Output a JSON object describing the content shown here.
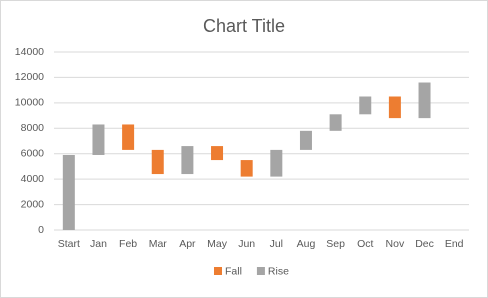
{
  "chart_data": {
    "type": "waterfall",
    "title": "Chart Title",
    "categories": [
      "Start",
      "Jan",
      "Feb",
      "Mar",
      "Apr",
      "May",
      "Jun",
      "Jul",
      "Aug",
      "Sep",
      "Oct",
      "Nov",
      "Dec",
      "End"
    ],
    "series": [
      {
        "name": "Fall",
        "color": "#ed7d31",
        "values": [
          null,
          null,
          [
            8300,
            6300
          ],
          [
            6300,
            4400
          ],
          null,
          [
            6600,
            5500
          ],
          [
            5500,
            4200
          ],
          null,
          null,
          null,
          null,
          [
            10500,
            8800
          ],
          null,
          null
        ]
      },
      {
        "name": "Rise",
        "color": "#a5a5a5",
        "values": [
          [
            0,
            5900
          ],
          [
            5900,
            8300
          ],
          null,
          null,
          [
            4400,
            6600
          ],
          null,
          null,
          [
            4200,
            6300
          ],
          [
            6300,
            7800
          ],
          [
            7800,
            9100
          ],
          [
            9100,
            10500
          ],
          null,
          [
            8800,
            11600
          ],
          null
        ]
      }
    ],
    "ylim": [
      0,
      14000
    ],
    "yticks": [
      0,
      2000,
      4000,
      6000,
      8000,
      10000,
      12000,
      14000
    ],
    "grid": true,
    "legend": "bottom"
  }
}
